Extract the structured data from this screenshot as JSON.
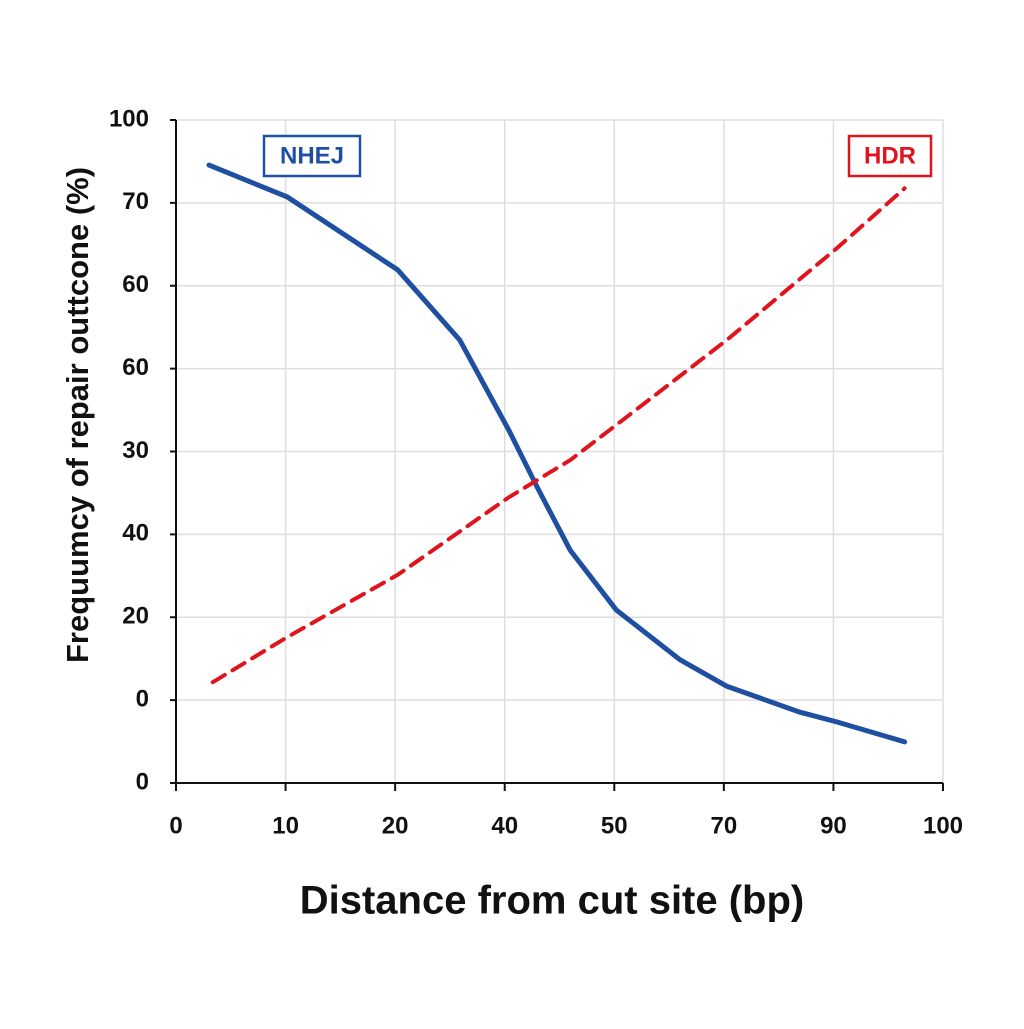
{
  "chart_data": {
    "type": "line",
    "x_label": "Distance from cut site (bp)",
    "y_label": "Frequumcy of repair outtcone (%)",
    "xlim": [
      0,
      100
    ],
    "xticks": [
      0,
      {
        "value": 14.2857,
        "label": "10"
      },
      {
        "value": 28.5714,
        "label": "20"
      },
      {
        "value": 42.8571,
        "label": "40"
      },
      {
        "value": 57.1429,
        "label": "50"
      },
      {
        "value": 71.4286,
        "label": "70"
      },
      {
        "value": 85.7143,
        "label": "90"
      },
      100
    ],
    "ylim": [
      0,
      100
    ],
    "yticks": [
      0,
      {
        "value": 12.5,
        "label": "0"
      },
      {
        "value": 25,
        "label": "20"
      },
      {
        "value": 37.5,
        "label": "40"
      },
      {
        "value": 50,
        "label": "30"
      },
      {
        "value": 62.5,
        "label": "60"
      },
      {
        "value": 75,
        "label": "60"
      },
      {
        "value": 87.5,
        "label": "70"
      },
      100
    ],
    "grid": true,
    "series": [
      {
        "name": "NHEJ",
        "color": "#1f4fa0",
        "dashed": false,
        "x": [
          4.3,
          14.5,
          28.9,
          37.0,
          43.4,
          47.1,
          51.4,
          57.4,
          65.7,
          71.8,
          81.3,
          86.2,
          95.0
        ],
        "values": [
          93.2,
          88.4,
          77.4,
          66.8,
          53.2,
          44.6,
          35.1,
          26.1,
          18.6,
          14.6,
          10.7,
          9.2,
          6.2
        ]
      },
      {
        "name": "HDR",
        "color": "#e0141c",
        "dashed": true,
        "x": [
          4.8,
          14.5,
          28.9,
          43.4,
          51.4,
          57.4,
          71.8,
          86.2,
          95.0
        ],
        "values": [
          15.2,
          22.0,
          31.4,
          43.1,
          48.7,
          54.0,
          66.8,
          80.7,
          89.7
        ]
      }
    ]
  }
}
